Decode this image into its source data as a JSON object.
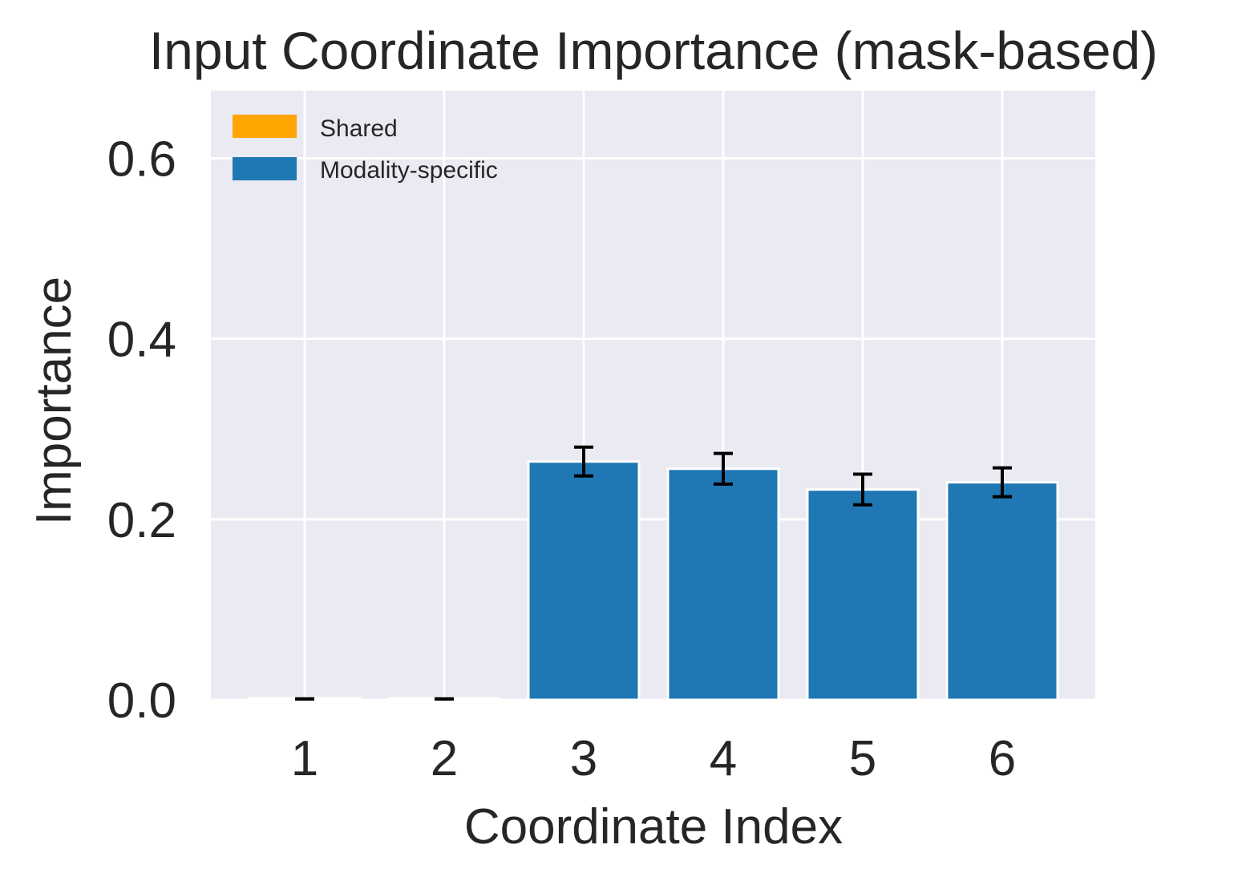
{
  "chart_data": {
    "type": "bar",
    "title": "Input Coordinate Importance (mask-based)",
    "xlabel": "Coordinate Index",
    "ylabel": "Importance",
    "categories": [
      "1",
      "2",
      "3",
      "4",
      "5",
      "6"
    ],
    "ylim": [
      0,
      0.675
    ],
    "yticks": [
      0.0,
      0.2,
      0.4,
      0.6
    ],
    "ytick_labels": [
      "0.0",
      "0.2",
      "0.4",
      "0.6"
    ],
    "grid": true,
    "legend_position": "top-left",
    "series": [
      {
        "name": "Shared",
        "color": "#FFA500",
        "values": [
          0.001,
          0.001,
          0,
          0,
          0,
          0
        ],
        "errors": [
          0,
          0,
          0,
          0,
          0,
          0
        ]
      },
      {
        "name": "Modality-specific",
        "color": "#1F77B4",
        "values": [
          0,
          0,
          0.264,
          0.256,
          0.233,
          0.241
        ],
        "errors": [
          0,
          0,
          0.016,
          0.017,
          0.017,
          0.016
        ]
      }
    ],
    "colors": {
      "plot_background": "#EAEAF2",
      "grid": "#FFFFFF",
      "text": "#262626",
      "error_bar": "#000000"
    }
  }
}
